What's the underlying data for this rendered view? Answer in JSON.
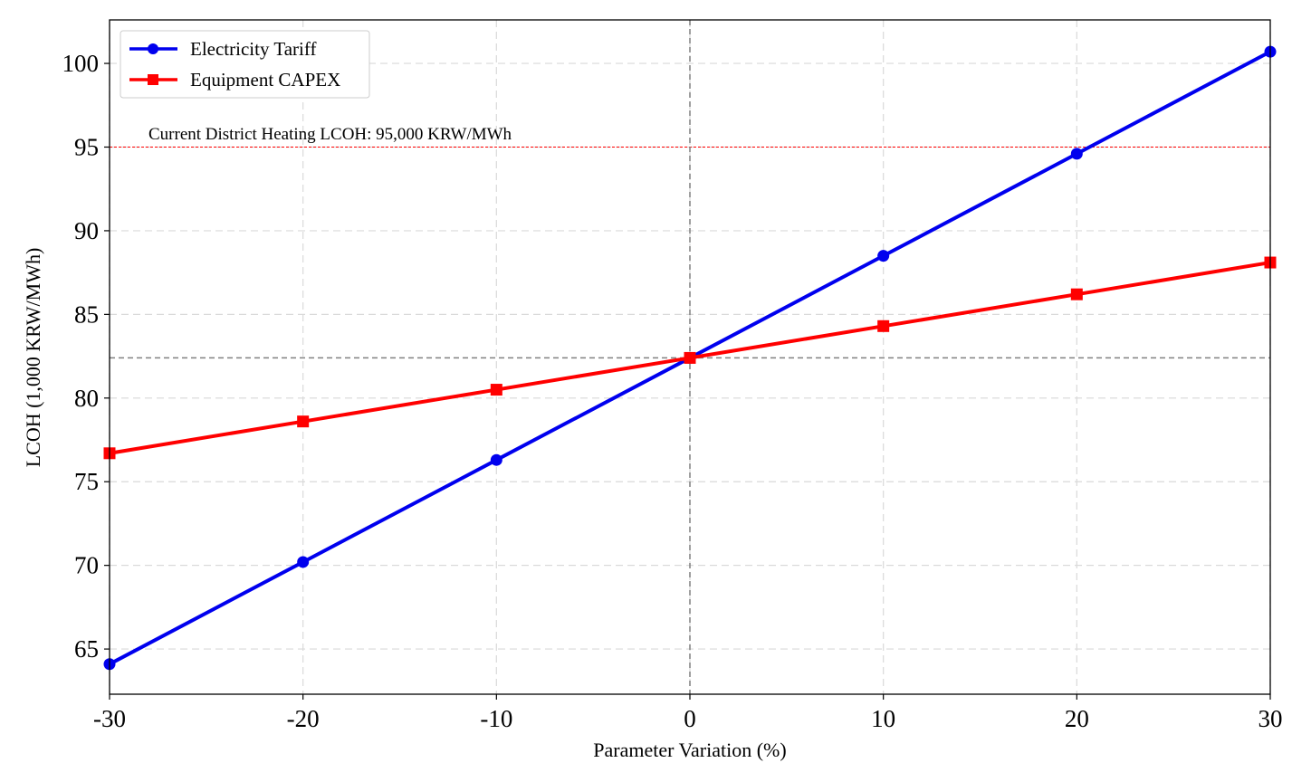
{
  "chart_data": {
    "type": "line",
    "title": "",
    "xlabel": "Parameter Variation (%)",
    "ylabel": "LCOH (1,000 KRW/MWh)",
    "x": [
      -30,
      -20,
      -10,
      0,
      10,
      20,
      30
    ],
    "xlim": [
      -30,
      30
    ],
    "ylim": [
      62.3,
      102.6
    ],
    "xticks": [
      "-30",
      "-20",
      "-10",
      "0",
      "10",
      "20",
      "30"
    ],
    "yticks": [
      "65",
      "70",
      "75",
      "80",
      "85",
      "90",
      "95",
      "100"
    ],
    "xtick_values": [
      -30,
      -20,
      -10,
      0,
      10,
      20,
      30
    ],
    "ytick_values": [
      65,
      70,
      75,
      80,
      85,
      90,
      95,
      100
    ],
    "grid": true,
    "legend_position": "top-left",
    "series": [
      {
        "name": "Electricity Tariff",
        "color": "#0000ee",
        "marker": "circle",
        "values": [
          64.1,
          70.2,
          76.3,
          82.4,
          88.5,
          94.6,
          100.7
        ]
      },
      {
        "name": "Equipment CAPEX",
        "color": "#ff0000",
        "marker": "square",
        "values": [
          76.7,
          78.6,
          80.5,
          82.4,
          84.3,
          86.2,
          88.1
        ]
      }
    ],
    "reference_lines": {
      "hline_value": 95,
      "hline_color": "#ff0000",
      "hline_label": "Current District Heating LCOH: 95,000 KRW/MWh",
      "baseline_x": 0,
      "baseline_y": 82.4,
      "baseline_color": "#808080"
    }
  }
}
